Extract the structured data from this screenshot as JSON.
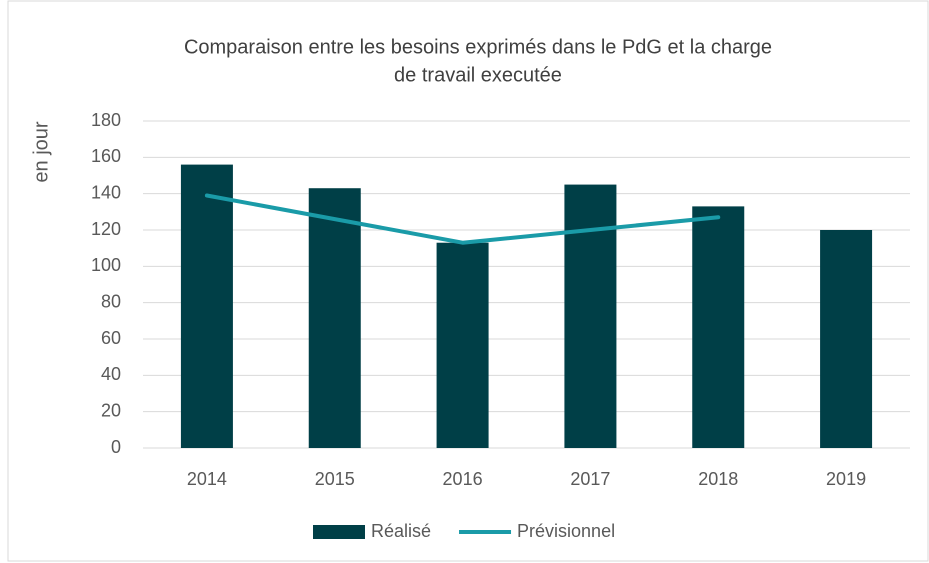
{
  "chart_data": {
    "type": "combo",
    "title": [
      "Comparaison entre les besoins exprimés dans le PdG et la charge",
      "de travail executée"
    ],
    "y_label": "en jour",
    "categories": [
      "2014",
      "2015",
      "2016",
      "2017",
      "2018",
      "2019"
    ],
    "series": [
      {
        "name": "Réalisé",
        "type": "bar",
        "color": "#003f47",
        "values": [
          156,
          143,
          113,
          145,
          133,
          120
        ]
      },
      {
        "name": "Prévisionnel",
        "type": "line",
        "color": "#1a9ba8",
        "values": [
          139,
          126,
          113,
          120,
          127,
          null
        ]
      }
    ],
    "ylim": [
      0,
      180
    ],
    "yticks": [
      0,
      20,
      40,
      60,
      80,
      100,
      120,
      140,
      160,
      180
    ],
    "grid": true,
    "legend": "bottom"
  }
}
